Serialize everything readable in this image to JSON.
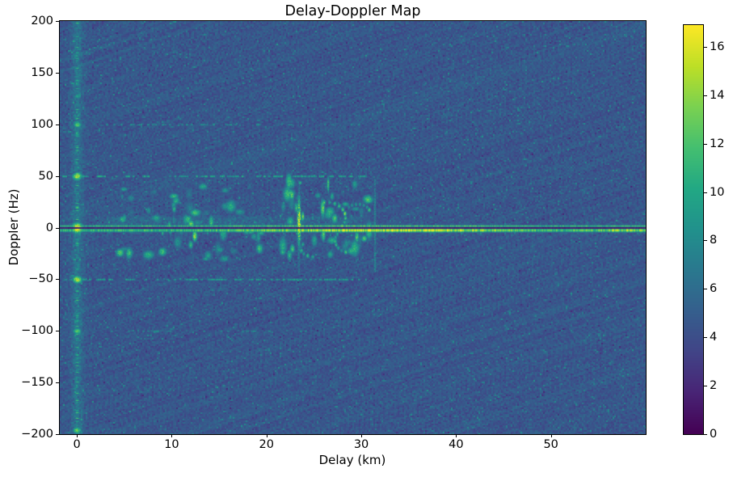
{
  "chart_data": {
    "type": "heatmap",
    "title": "Delay-Doppler Map",
    "xlabel": "Delay (km)",
    "ylabel": "Doppler (Hz)",
    "xlim": [
      -1.8,
      60.0
    ],
    "ylim": [
      -200,
      200
    ],
    "xticks": [
      0,
      10,
      20,
      30,
      40,
      50
    ],
    "yticks": [
      200,
      150,
      100,
      50,
      0,
      -50,
      -100,
      -150,
      -200
    ],
    "grid": false,
    "colormap": {
      "name": "viridis",
      "stops": [
        [
          0.0,
          "#440154"
        ],
        [
          0.1,
          "#482475"
        ],
        [
          0.2,
          "#414487"
        ],
        [
          0.3,
          "#355f8d"
        ],
        [
          0.4,
          "#2a788e"
        ],
        [
          0.5,
          "#21918c"
        ],
        [
          0.6,
          "#22a884"
        ],
        [
          0.7,
          "#44bf70"
        ],
        [
          0.8,
          "#7ad151"
        ],
        [
          0.9,
          "#bddf26"
        ],
        [
          1.0,
          "#fde725"
        ]
      ]
    },
    "colorbar": {
      "position": "right",
      "vmin": 0,
      "vmax": 16.9,
      "ticks": [
        0,
        2,
        4,
        6,
        8,
        10,
        12,
        14,
        16
      ]
    },
    "background": {
      "mean": 4.6,
      "noise_spread": 1.6,
      "speckle_chance": 0.03,
      "dark_chance": 0.015
    },
    "features": [
      {
        "kind": "zero_delay_stripe",
        "delay_km": 0.0,
        "sigma_km": 0.45,
        "boost": 1.9,
        "speckle_density": 0.17,
        "speckle_amp": [
          7,
          12.5
        ],
        "speckle_sigma_km": 0.22
      },
      {
        "kind": "blob",
        "delay_km": 0,
        "doppler_hz": 0,
        "amp": 17,
        "sigma_km": 0.5,
        "sigma_hz": 4.5
      },
      {
        "kind": "blob",
        "delay_km": 0,
        "doppler_hz": 50,
        "amp": 15.5,
        "sigma_km": 0.42,
        "sigma_hz": 3.2
      },
      {
        "kind": "blob",
        "delay_km": 0,
        "doppler_hz": -50,
        "amp": 15.5,
        "sigma_km": 0.42,
        "sigma_hz": 3.2
      },
      {
        "kind": "blob",
        "delay_km": 0,
        "doppler_hz": 100,
        "amp": 12.5,
        "sigma_km": 0.38,
        "sigma_hz": 2.6
      },
      {
        "kind": "blob",
        "delay_km": 0,
        "doppler_hz": -100,
        "amp": 12.5,
        "sigma_km": 0.38,
        "sigma_hz": 2.6
      },
      {
        "kind": "blob",
        "delay_km": 0,
        "doppler_hz": 90,
        "amp": 9,
        "sigma_km": 0.3,
        "sigma_hz": 1.8
      },
      {
        "kind": "blob",
        "delay_km": 0,
        "doppler_hz": -90,
        "amp": 9.5,
        "sigma_km": 0.3,
        "sigma_hz": 1.8
      },
      {
        "kind": "blob",
        "delay_km": 0,
        "doppler_hz": 127,
        "amp": 8.5,
        "sigma_km": 0.35,
        "sigma_hz": 2.2
      },
      {
        "kind": "blob",
        "delay_km": 0,
        "doppler_hz": -126,
        "amp": 8.5,
        "sigma_km": 0.35,
        "sigma_hz": 2.2
      },
      {
        "kind": "blob",
        "delay_km": 0,
        "doppler_hz": -196,
        "amp": 13,
        "sigma_km": 0.4,
        "sigma_hz": 2.8
      },
      {
        "kind": "zero_doppler_line",
        "upper_offset_hz": 1.9,
        "upper_sigma_hz": 0.8,
        "upper_amp": 11.0,
        "lower_offset_hz": -2.3,
        "lower_sigma_hz": 1.6,
        "lower_amp": 11.2,
        "bright_center_km": 33,
        "bright_sigma_km": 9.5,
        "bright_boost": 4.6,
        "edge_bump_km": 58,
        "edge_bump_sigma_km": 2.5,
        "edge_bump_boost": 2.8,
        "notch_hz": 0.6,
        "notch_level": 1.0
      },
      {
        "kind": "dotted_hline",
        "doppler_hz": 50,
        "delay_range_km": [
          -1.5,
          30.5
        ],
        "density": 0.55,
        "amp": [
          7,
          11.5
        ]
      },
      {
        "kind": "dotted_hline",
        "doppler_hz": -50,
        "delay_range_km": [
          -1.5,
          30.5
        ],
        "density": 0.5,
        "amp": [
          7,
          11
        ]
      },
      {
        "kind": "dotted_hline",
        "doppler_hz": 100,
        "delay_range_km": [
          3,
          30
        ],
        "density": 0.3,
        "amp": [
          6.5,
          9.5
        ]
      },
      {
        "kind": "dotted_hline",
        "doppler_hz": -100,
        "delay_range_km": [
          3,
          30
        ],
        "density": 0.25,
        "amp": [
          6.5,
          9
        ]
      },
      {
        "kind": "clutter_field",
        "seed": 11,
        "count": 60,
        "delay_range_km": [
          3.5,
          19.5
        ],
        "doppler_range_hz": [
          -30,
          42
        ],
        "amp": [
          6.5,
          12.5
        ],
        "sigma_km": [
          0.12,
          0.55
        ],
        "sigma_hz": [
          1.2,
          4.5
        ]
      },
      {
        "kind": "clutter_field",
        "seed": 23,
        "count": 45,
        "delay_range_km": [
          21.5,
          31.2
        ],
        "doppler_range_hz": [
          -32,
          46
        ],
        "amp": [
          6.5,
          13
        ],
        "sigma_km": [
          0.12,
          0.5
        ],
        "sigma_hz": [
          1.2,
          5
        ]
      },
      {
        "kind": "haze",
        "delay_range_km": [
          1.5,
          31
        ],
        "doppler_range_hz": [
          1,
          13
        ],
        "level": 1.1
      },
      {
        "kind": "blob",
        "delay_km": 12.4,
        "doppler_hz": -8,
        "amp": 14.5,
        "sigma_km": 0.22,
        "sigma_hz": 4.5
      },
      {
        "kind": "blob",
        "delay_km": 12.0,
        "doppler_hz": 4,
        "amp": 13,
        "sigma_km": 0.3,
        "sigma_hz": 3
      },
      {
        "kind": "vstreak",
        "delay_km": 23.4,
        "doppler_range_hz": [
          -45,
          45
        ],
        "amp": 16.5,
        "sigma_km": 0.17,
        "peak_doppler_hz": 5,
        "peak_sigma_hz": 14,
        "base_fraction": 0.35
      },
      {
        "kind": "vstreak",
        "delay_km": 31.4,
        "doppler_range_hz": [
          -42,
          47
        ],
        "amp": 7.6,
        "sigma_km": 0.13,
        "peak_doppler_hz": 0,
        "peak_sigma_hz": 60,
        "base_fraction": 0.5
      },
      {
        "kind": "arc",
        "center_km_hz": [
          26.3,
          10
        ],
        "radius_km": 2.0,
        "radius_hz": 15,
        "angle_range": [
          -0.6,
          1.7
        ],
        "amp": 11.5,
        "points": 9
      },
      {
        "kind": "arc",
        "center_km_hz": [
          28.8,
          -12
        ],
        "radius_km": 1.6,
        "radius_hz": 12,
        "angle_range": [
          2.3,
          4.4
        ],
        "amp": 10.5,
        "points": 8
      },
      {
        "kind": "arc",
        "center_km_hz": [
          29.6,
          14
        ],
        "radius_km": 1.3,
        "radius_hz": 9,
        "angle_range": [
          0.4,
          2.4
        ],
        "amp": 11,
        "points": 7
      },
      {
        "kind": "arc",
        "center_km_hz": [
          25.0,
          -20
        ],
        "radius_km": 1.4,
        "radius_hz": 8,
        "angle_range": [
          2.6,
          4.6
        ],
        "amp": 10,
        "points": 6
      }
    ]
  }
}
